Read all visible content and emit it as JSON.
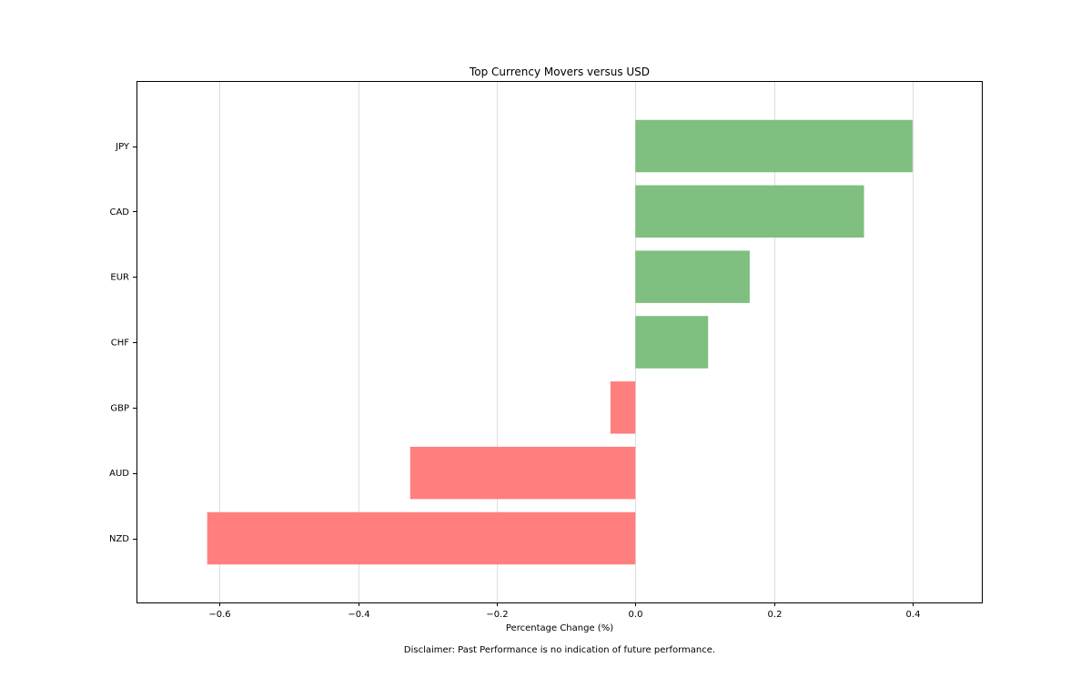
{
  "chart_data": {
    "type": "bar",
    "orientation": "horizontal",
    "title": "Top Currency Movers versus USD",
    "xlabel": "Percentage Change (%)",
    "ylabel": "",
    "categories": [
      "JPY",
      "CAD",
      "EUR",
      "CHF",
      "GBP",
      "AUD",
      "NZD"
    ],
    "values": [
      0.4,
      0.33,
      0.165,
      0.105,
      -0.036,
      -0.325,
      -0.618
    ],
    "xlim": [
      -0.72,
      0.5
    ],
    "xticks": [
      -0.6,
      -0.4,
      -0.2,
      0.0,
      0.2,
      0.4
    ],
    "xtick_labels": [
      "−0.6",
      "−0.4",
      "−0.2",
      "0.0",
      "0.2",
      "0.4"
    ],
    "grid": "vertical",
    "colors": {
      "positive": "#7fbf7f",
      "negative": "#ff7f7f",
      "grid": "#dddddd",
      "frame": "#000000"
    },
    "footnote": "Disclaimer: Past Performance is no indication of future performance."
  }
}
